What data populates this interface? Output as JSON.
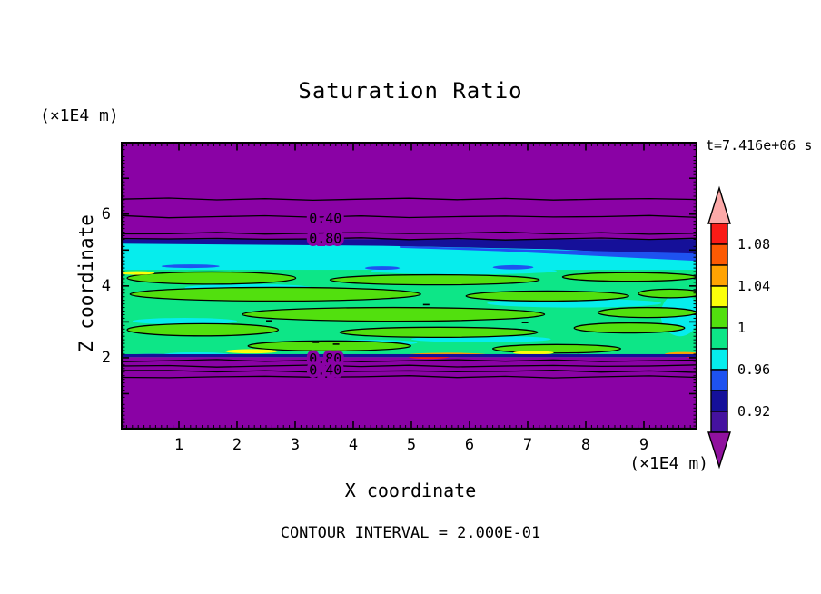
{
  "chart_data": {
    "type": "heatmap",
    "subtype": "filled-contour-plot",
    "title": "Saturation Ratio",
    "xlabel": "X coordinate",
    "ylabel": "Z coordinate",
    "x_unit": "(×1E4 m)",
    "z_unit": "(×1E4 m)",
    "time_label": "t=7.416e+06 s",
    "contour_interval_label": "CONTOUR INTERVAL = 2.000E-01",
    "contour_interval_value": 0.2,
    "xlim": [
      0,
      9.92
    ],
    "zlim": [
      0,
      8.02
    ],
    "x_major_ticks": [
      1,
      2,
      3,
      4,
      5,
      6,
      7,
      8,
      9
    ],
    "x_minor_step": 0.1,
    "z_major_ticks": [
      2,
      4,
      6
    ],
    "z_minor_step": 0.1,
    "colorbar": {
      "range": [
        0.9,
        1.1
      ],
      "segment_step": 0.02,
      "segments": [
        {
          "range": [
            1.08,
            1.1
          ],
          "color": "#fa1b17"
        },
        {
          "range": [
            1.06,
            1.08
          ],
          "color": "#fc5a03"
        },
        {
          "range": [
            1.04,
            1.06
          ],
          "color": "#ffa302"
        },
        {
          "range": [
            1.02,
            1.04
          ],
          "color": "#fcff0a"
        },
        {
          "range": [
            1.0,
            1.02
          ],
          "color": "#52e00e"
        },
        {
          "range": [
            0.98,
            1.0
          ],
          "color": "#0de687"
        },
        {
          "range": [
            0.96,
            0.98
          ],
          "color": "#06eded"
        },
        {
          "range": [
            0.94,
            0.96
          ],
          "color": "#1e52f0"
        },
        {
          "range": [
            0.92,
            0.94
          ],
          "color": "#151099"
        },
        {
          "range": [
            0.9,
            0.92
          ],
          "color": "#45129f"
        }
      ],
      "tick_labels": [
        {
          "text": "1.08",
          "value": 1.08
        },
        {
          "text": "1.04",
          "value": 1.04
        },
        {
          "text": "1",
          "value": 1.0
        },
        {
          "text": "0.96",
          "value": 0.96
        },
        {
          "text": "0.92",
          "value": 0.92
        }
      ],
      "over_color": "#fca9a8",
      "under_color": "#90119e"
    },
    "line_contours": [
      {
        "value": 0.2,
        "z": 6.42,
        "side": "top"
      },
      {
        "value": 0.4,
        "z": 5.93,
        "side": "top"
      },
      {
        "value": 0.6,
        "z": 5.47,
        "side": "top"
      },
      {
        "value": 0.8,
        "z": 5.31,
        "side": "top"
      },
      {
        "value": 0.8,
        "z": 1.92,
        "side": "bottom"
      },
      {
        "value": 0.6,
        "z": 1.77,
        "side": "bottom"
      },
      {
        "value": 0.4,
        "z": 1.62,
        "side": "bottom"
      },
      {
        "value": 0.2,
        "z": 1.47,
        "side": "bottom"
      }
    ],
    "contour_labels": [
      {
        "text": "0.40",
        "x": 3.52,
        "z": 5.88
      },
      {
        "text": "0.80",
        "x": 3.52,
        "z": 5.33
      },
      {
        "text": "0.80",
        "x": 3.52,
        "z": 1.97
      },
      {
        "text": "0.40",
        "x": 3.52,
        "z": 1.66
      }
    ],
    "field": {
      "background": {
        "color": "#8a02a5",
        "meaning": "saturation below 0.90 (underflow)"
      },
      "band": {
        "cyan_layer": {
          "z_top": 5.3,
          "z_bottom": 4.3,
          "color": "#06eded"
        },
        "green_layer": {
          "z_top": 4.45,
          "z_bottom": 2.02,
          "color": "#0de687"
        },
        "navy_wedge": {
          "color": "#151099",
          "points": [
            [
              0,
              5.3
            ],
            [
              9.92,
              5.3
            ],
            [
              9.92,
              4.83
            ],
            [
              7.5,
              5.02
            ],
            [
              4.5,
              5.12
            ],
            [
              0,
              5.18
            ]
          ]
        },
        "blue_wedge": {
          "color": "#1e52f0",
          "points": [
            [
              4.8,
              5.11
            ],
            [
              9.92,
              4.9
            ],
            [
              9.92,
              4.7
            ],
            [
              6.5,
              4.97
            ],
            [
              4.8,
              5.06
            ]
          ]
        },
        "bottom_navy_strip": {
          "z_top": 2.1,
          "z_bottom": 2.02,
          "color": "#151099"
        },
        "cyan_lenses": [
          [
            2.2,
            3.95,
            1.1,
            0.1
          ],
          [
            7.8,
            3.52,
            1.5,
            0.12
          ],
          [
            1.1,
            3.02,
            0.9,
            0.09
          ],
          [
            6.2,
            2.52,
            1.2,
            0.09
          ],
          [
            9.62,
            3.2,
            0.33,
            0.6
          ],
          [
            4.3,
            2.42,
            0.8,
            0.08
          ],
          [
            5.9,
            4.42,
            1.6,
            0.1
          ],
          [
            1.3,
            2.1,
            0.55,
            0.05
          ]
        ],
        "blue_specks": [
          [
            1.2,
            4.55,
            0.5,
            0.05
          ],
          [
            6.75,
            4.52,
            0.35,
            0.06
          ],
          [
            4.5,
            4.5,
            0.3,
            0.05
          ],
          [
            0.55,
            2.07,
            0.4,
            0.04
          ]
        ],
        "chartreuse_blobs": [
          [
            1.56,
            4.22,
            1.45,
            0.17
          ],
          [
            5.4,
            4.17,
            1.8,
            0.14
          ],
          [
            8.75,
            4.25,
            1.15,
            0.12
          ],
          [
            2.66,
            3.77,
            2.5,
            0.19
          ],
          [
            7.34,
            3.72,
            1.4,
            0.14
          ],
          [
            9.45,
            3.79,
            0.55,
            0.12
          ],
          [
            4.69,
            3.21,
            2.6,
            0.19
          ],
          [
            9.06,
            3.26,
            0.85,
            0.14
          ],
          [
            1.41,
            2.78,
            1.3,
            0.17
          ],
          [
            5.47,
            2.71,
            1.7,
            0.14
          ],
          [
            8.75,
            2.83,
            0.95,
            0.14
          ],
          [
            3.59,
            2.33,
            1.4,
            0.14
          ],
          [
            7.5,
            2.25,
            1.1,
            0.12
          ]
        ],
        "hot_streaks": [
          {
            "color": "#fcff0a",
            "e": [
              2.25,
              2.18,
              0.45,
              0.06
            ]
          },
          {
            "color": "#fcff0a",
            "e": [
              7.1,
              2.14,
              0.35,
              0.05
            ]
          },
          {
            "color": "#fcff0a",
            "e": [
              0.28,
              4.36,
              0.3,
              0.05
            ]
          },
          {
            "color": "#ffa302",
            "e": [
              5.62,
              2.08,
              0.7,
              0.06
            ]
          },
          {
            "color": "#ffa302",
            "e": [
              9.68,
              2.1,
              0.32,
              0.06
            ]
          },
          {
            "color": "#fa1b17",
            "e": [
              5.3,
              2.02,
              0.35,
              0.05
            ]
          },
          {
            "color": "#fa1b17",
            "e": [
              9.86,
              2.04,
              0.15,
              0.05
            ]
          }
        ],
        "contour_specks": [
          [
            3.3,
            2.45
          ],
          [
            3.65,
            2.4
          ],
          [
            2.5,
            3.05
          ],
          [
            5.2,
            3.5
          ],
          [
            6.9,
            3.0
          ]
        ]
      }
    }
  }
}
